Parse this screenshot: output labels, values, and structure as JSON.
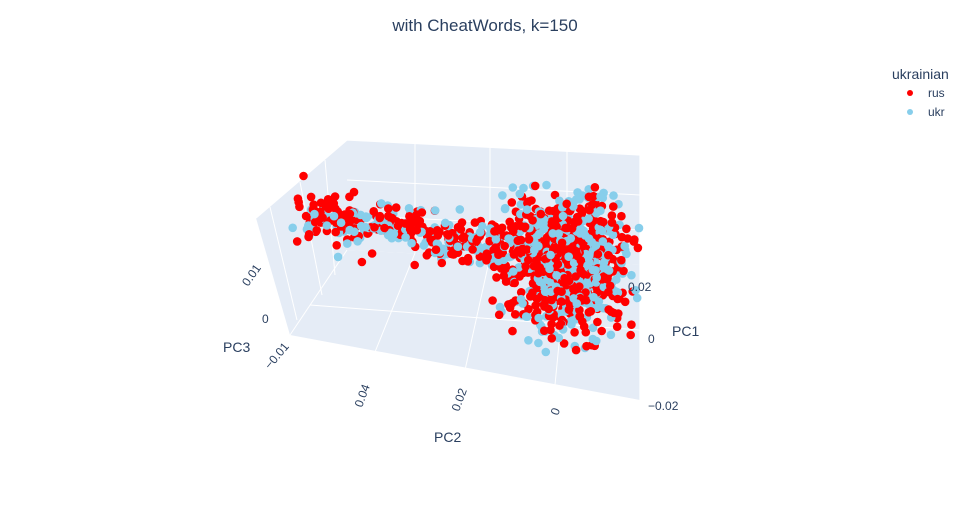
{
  "chart_data": {
    "type": "scatter",
    "title": "with CheatWords, k=150",
    "axes": {
      "x": {
        "label": "PC1",
        "ticks": [
          "−0.02",
          "0",
          "0.02"
        ]
      },
      "y": {
        "label": "PC2",
        "ticks": [
          "0.04",
          "0.02",
          "0"
        ]
      },
      "z": {
        "label": "PC3",
        "ticks": [
          "0.01",
          "0",
          "−0.01"
        ]
      }
    },
    "legend": {
      "title": "ukrainian",
      "placement": "top-right",
      "entries": [
        {
          "name": "rus",
          "color": "#ff0000"
        },
        {
          "name": "ukr",
          "color": "#87ceeb"
        }
      ]
    },
    "series": [
      {
        "name": "rus",
        "color": "#ff0000"
      },
      {
        "name": "ukr",
        "color": "#87ceeb"
      }
    ],
    "scene": {
      "background": "#e5ecf6",
      "grid_color": "#ffffff",
      "projection": "3d-perspective"
    }
  }
}
